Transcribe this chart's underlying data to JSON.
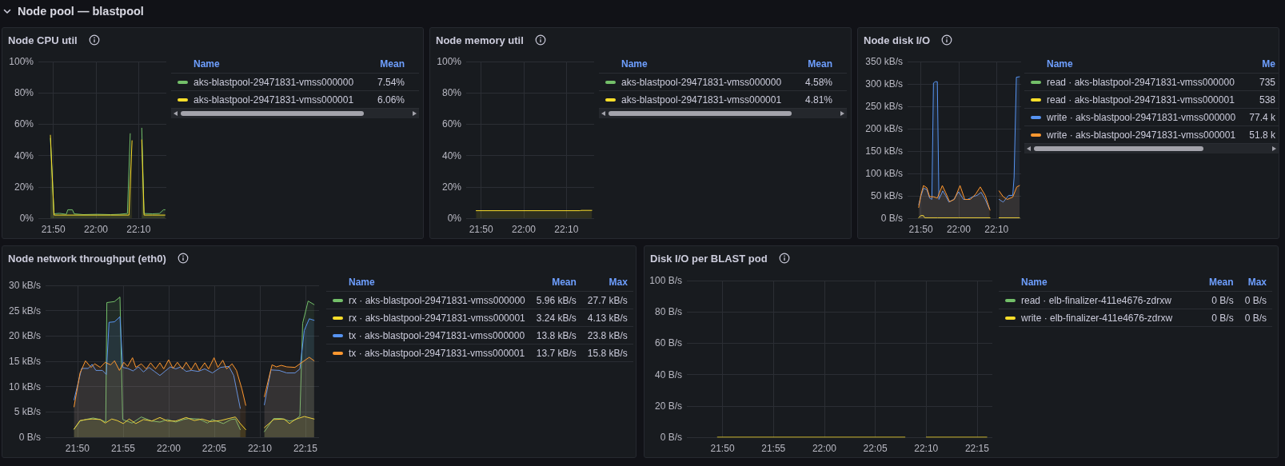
{
  "chart_data": [
    {
      "type": "other",
      "title": "Node pool — blastpool"
    },
    {
      "type": "area",
      "title": "Node CPU util",
      "xlim": [
        21.775,
        22.275
      ],
      "xticks": [
        {
          "value": 21.8333,
          "label": "21:50"
        },
        {
          "value": 22,
          "label": "22:00"
        },
        {
          "value": 22.1667,
          "label": "22:10"
        }
      ],
      "ylim": [
        0,
        100
      ],
      "yticks": [
        {
          "value": 0,
          "label": "0%"
        },
        {
          "value": 20,
          "label": "20%"
        },
        {
          "value": 40,
          "label": "40%"
        },
        {
          "value": 60,
          "label": "60%"
        },
        {
          "value": 80,
          "label": "80%"
        },
        {
          "value": 100,
          "label": "100%"
        }
      ],
      "grid": true,
      "legend": "right",
      "legend_title": "Name",
      "marker": "none",
      "series": [
        {
          "name": "aks-blastpool-29471831-vmss000000",
          "color": "#73bf69",
          "x": [
            21.822,
            21.836,
            21.857,
            21.884,
            21.89,
            21.908,
            21.915,
            21.95,
            22.004,
            22.058,
            22.091,
            22.123,
            22.134,
            22.158,
            22.179,
            22.188,
            22.221,
            22.248,
            22.264,
            22.27
          ],
          "values": [
            51,
            2.8,
            3.1,
            2.5,
            5.4,
            5.4,
            2.8,
            2.3,
            2.5,
            2.3,
            2.5,
            3.0,
            54,
            null,
            57.5,
            3.0,
            2.8,
            3.0,
            5.4,
            5.4
          ]
        },
        {
          "name": "aks-blastpool-29471831-vmss000001",
          "color": "#fade2a",
          "x": [
            21.822,
            21.836,
            21.884,
            21.95,
            22.004,
            22.058,
            22.129,
            22.141,
            22.158,
            22.179,
            22.188,
            22.221,
            22.27
          ],
          "values": [
            53,
            2.0,
            2.0,
            2.0,
            2.0,
            2.0,
            2.0,
            49.5,
            null,
            50,
            2.0,
            2.0,
            2.0
          ]
        }
      ],
      "annotations": [
        "Mean",
        "7.54%",
        "6.06%"
      ]
    },
    {
      "type": "area",
      "title": "Node memory util",
      "xlim": [
        21.775,
        22.275
      ],
      "xticks": [
        {
          "value": 21.8333,
          "label": "21:50"
        },
        {
          "value": 22,
          "label": "22:00"
        },
        {
          "value": 22.1667,
          "label": "22:10"
        }
      ],
      "ylim": [
        0,
        100
      ],
      "yticks": [
        {
          "value": 0,
          "label": "0%"
        },
        {
          "value": 20,
          "label": "20%"
        },
        {
          "value": 40,
          "label": "40%"
        },
        {
          "value": 60,
          "label": "60%"
        },
        {
          "value": 80,
          "label": "80%"
        },
        {
          "value": 100,
          "label": "100%"
        }
      ],
      "grid": true,
      "legend": "right",
      "legend_title": "Name",
      "marker": "none",
      "series": [
        {
          "name": "aks-blastpool-29471831-vmss000000",
          "color": "#73bf69"
        },
        {
          "name": "aks-blastpool-29471831-vmss000001",
          "color": "#fade2a",
          "x": [
            21.814,
            21.9,
            22.0,
            22.1,
            22.22,
            22.225,
            22.266
          ],
          "values": [
            4.8,
            4.8,
            4.8,
            4.8,
            4.8,
            5.0,
            5.0
          ]
        }
      ],
      "annotations": [
        "Mean",
        "4.58%",
        "4.81%"
      ]
    },
    {
      "type": "area",
      "title": "Node disk I/O",
      "xlim": [
        21.775,
        22.275
      ],
      "xticks": [
        {
          "value": 21.8333,
          "label": "21:50"
        },
        {
          "value": 22,
          "label": "22:00"
        },
        {
          "value": 22.1667,
          "label": "22:10"
        }
      ],
      "ylim": [
        0,
        350
      ],
      "yticks": [
        {
          "value": 0,
          "label": "0 B/s"
        },
        {
          "value": 50,
          "label": "50 kB/s"
        },
        {
          "value": 100,
          "label": "100 kB/s"
        },
        {
          "value": 150,
          "label": "150 kB/s"
        },
        {
          "value": 200,
          "label": "200 kB/s"
        },
        {
          "value": 250,
          "label": "250 kB/s"
        },
        {
          "value": 300,
          "label": "300 kB/s"
        },
        {
          "value": 350,
          "label": "350 kB/s"
        }
      ],
      "grid": true,
      "legend": "right",
      "legend_title": "Name",
      "marker": "none",
      "series": [
        {
          "name": "read · aks-blastpool-29471831-vmss000000",
          "color": "#73bf69"
        },
        {
          "name": "read · aks-blastpool-29471831-vmss000001",
          "color": "#fade2a",
          "x": [
            21.824,
            21.833,
            21.845,
            21.85,
            21.87,
            21.906,
            22.0,
            22.138,
            22.16,
            22.178,
            22.268
          ],
          "values": [
            1,
            6,
            6,
            1,
            1,
            1,
            1,
            1,
            null,
            1,
            1
          ]
        },
        {
          "name": "write · aks-blastpool-29471831-vmss000000",
          "color": "#5794f2",
          "x": [
            21.824,
            21.833,
            21.845,
            21.86,
            21.872,
            21.882,
            21.889,
            21.897,
            21.906,
            21.913,
            21.93,
            21.942,
            21.957,
            21.978,
            22.0,
            22.021,
            22.039,
            22.063,
            22.081,
            22.099,
            22.117,
            22.135,
            22.16,
            22.178,
            22.196,
            22.22,
            22.238,
            22.244,
            22.254,
            22.268
          ],
          "values": [
            30,
            48,
            67,
            64,
            45,
            42,
            302,
            305,
            305,
            42,
            61,
            51,
            36,
            42,
            59,
            42,
            42,
            48,
            51,
            58,
            42,
            21,
            null,
            42,
            36,
            51,
            51,
            91,
            315,
            316
          ]
        },
        {
          "name": "write · aks-blastpool-29471831-vmss000001",
          "color": "#ff9830",
          "x": [
            21.824,
            21.833,
            21.845,
            21.86,
            21.872,
            21.888,
            21.906,
            21.928,
            21.942,
            21.96,
            21.981,
            22.006,
            22.027,
            22.051,
            22.075,
            22.095,
            22.117,
            22.138,
            22.16,
            22.178,
            22.196,
            22.214,
            22.238,
            22.256,
            22.268
          ],
          "values": [
            24,
            51,
            73,
            68,
            48,
            48,
            45,
            73,
            58,
            37,
            42,
            73,
            42,
            42,
            54,
            70,
            51,
            18,
            null,
            61,
            48,
            42,
            47,
            70,
            73
          ]
        }
      ],
      "annotations": [
        "Me",
        "735",
        "538",
        "77.4 k",
        "51.8 k"
      ]
    },
    {
      "type": "area",
      "title": "Node network throughput (eth0)",
      "xlim": [
        21.775,
        22.275
      ],
      "xticks": [
        {
          "value": 21.8333,
          "label": "21:50"
        },
        {
          "value": 21.9167,
          "label": "21:55"
        },
        {
          "value": 22,
          "label": "22:00"
        },
        {
          "value": 22.0833,
          "label": "22:05"
        },
        {
          "value": 22.1667,
          "label": "22:10"
        },
        {
          "value": 22.25,
          "label": "22:15"
        }
      ],
      "ylim": [
        0,
        30
      ],
      "yticks": [
        {
          "value": 0,
          "label": "0 B/s"
        },
        {
          "value": 5,
          "label": "5 kB/s"
        },
        {
          "value": 10,
          "label": "10 kB/s"
        },
        {
          "value": 15,
          "label": "15 kB/s"
        },
        {
          "value": 20,
          "label": "20 kB/s"
        },
        {
          "value": 25,
          "label": "25 kB/s"
        },
        {
          "value": 30,
          "label": "30 kB/s"
        }
      ],
      "grid": true,
      "legend": "right",
      "legend_title": "Name",
      "marker": "none",
      "series": [
        {
          "name": "rx · aks-blastpool-29471831-vmss000000",
          "color": "#73bf69",
          "x": [
            21.827,
            21.838,
            21.848,
            21.862,
            21.875,
            21.885,
            21.887,
            21.901,
            21.911,
            21.916,
            21.933,
            21.95,
            21.969,
            21.984,
            21.998,
            22.013,
            22.027,
            22.037,
            22.056,
            22.071,
            22.08,
            22.1,
            22.114,
            22.122,
            22.131,
            22.158,
            22.175,
            22.192,
            22.206,
            22.221,
            22.231,
            22.24,
            22.245,
            22.255,
            22.266
          ],
          "values": [
            1.6,
            3.2,
            3.5,
            3.8,
            3.5,
            3.0,
            26.6,
            26.8,
            27.7,
            3.5,
            2.8,
            4.0,
            3.2,
            3.0,
            3.5,
            3.0,
            3.5,
            3.7,
            3.6,
            2.8,
            3.5,
            2.7,
            3.5,
            3.6,
            1.5,
            null,
            1.1,
            3.7,
            3.7,
            3.2,
            3.4,
            4.2,
            22.5,
            26.9,
            26.2
          ]
        },
        {
          "name": "rx · aks-blastpool-29471831-vmss000001",
          "color": "#fade2a",
          "x": [
            21.827,
            21.838,
            21.85,
            21.86,
            21.875,
            21.884,
            21.896,
            21.906,
            21.917,
            21.928,
            21.94,
            21.954,
            21.969,
            21.984,
            21.998,
            22.013,
            22.032,
            22.047,
            22.061,
            22.076,
            22.095,
            22.11,
            22.122,
            22.131,
            22.141,
            22.158,
            22.175,
            22.192,
            22.211,
            22.221,
            22.231,
            22.248,
            22.266
          ],
          "values": [
            1.6,
            3.3,
            3.5,
            3.6,
            3.5,
            2.8,
            3.6,
            3.3,
            2.7,
            3.6,
            2.7,
            3.5,
            3.2,
            3.9,
            3.2,
            3.2,
            3.9,
            3.3,
            3.6,
            3.1,
            3.3,
            3.7,
            4.0,
            2.7,
            1.5,
            null,
            1.9,
            3.5,
            3.6,
            2.7,
            3.5,
            4.1,
            3.6
          ]
        },
        {
          "name": "tx · aks-blastpool-29471831-vmss000000",
          "color": "#5794f2",
          "x": [
            21.827,
            21.841,
            21.853,
            21.86,
            21.867,
            21.879,
            21.886,
            21.891,
            21.901,
            21.911,
            21.916,
            21.925,
            21.935,
            21.945,
            21.954,
            21.964,
            21.974,
            21.984,
            21.993,
            22.003,
            22.013,
            22.022,
            22.032,
            22.042,
            22.054,
            22.066,
            22.08,
            22.095,
            22.11,
            22.119,
            22.131,
            22.158,
            22.175,
            22.187,
            22.202,
            22.216,
            22.231,
            22.24,
            22.248,
            22.257,
            22.266
          ],
          "values": [
            7.4,
            13.6,
            13.6,
            14.4,
            13.2,
            13.2,
            12.4,
            22.7,
            22.8,
            23.8,
            13.8,
            13.6,
            13.1,
            13.9,
            12.9,
            13.8,
            13.0,
            12.2,
            13.0,
            13.9,
            13.5,
            13.9,
            13.0,
            13.2,
            13.0,
            13.5,
            12.7,
            13.8,
            14.0,
            12.2,
            5.7,
            null,
            6.4,
            13.3,
            13.2,
            12.7,
            12.7,
            13.5,
            21.1,
            23.4,
            23.1
          ]
        },
        {
          "name": "tx · aks-blastpool-29471831-vmss000001",
          "color": "#ff9830",
          "x": [
            21.827,
            21.838,
            21.848,
            21.858,
            21.865,
            21.875,
            21.884,
            21.894,
            21.901,
            21.91,
            21.918,
            21.925,
            21.934,
            21.94,
            21.95,
            21.959,
            21.967,
            21.976,
            21.984,
            21.991,
            22.0,
            22.008,
            22.016,
            22.025,
            22.032,
            22.041,
            22.049,
            22.056,
            22.066,
            22.073,
            22.083,
            22.09,
            22.099,
            22.106,
            22.116,
            22.124,
            22.134,
            22.141,
            22.158,
            22.175,
            22.189,
            22.197,
            22.206,
            22.216,
            22.231,
            22.24,
            22.257,
            22.266
          ],
          "values": [
            6.0,
            12.7,
            15.1,
            13.8,
            14.5,
            13.8,
            14.8,
            14.3,
            15.1,
            13.2,
            14.8,
            14.0,
            15.7,
            13.8,
            14.5,
            13.5,
            14.7,
            13.5,
            14.7,
            13.5,
            15.3,
            13.6,
            14.8,
            13.5,
            14.8,
            13.3,
            14.7,
            13.2,
            14.7,
            13.5,
            15.7,
            13.8,
            15.2,
            13.5,
            14.5,
            13.2,
            9.5,
            6.3,
            null,
            8.0,
            14.3,
            13.9,
            14.2,
            13.9,
            13.8,
            14.5,
            15.8,
            15.1
          ]
        }
      ],
      "annotations": [
        "Mean",
        "5.96 kB/s",
        "3.24 kB/s",
        "13.8 kB/s",
        "13.7 kB/s",
        "Max",
        "27.7 kB/s",
        "4.13 kB/s",
        "23.8 kB/s",
        "15.8 kB/s"
      ]
    },
    {
      "type": "line",
      "title": "Disk I/O per BLAST pod",
      "xlim": [
        21.775,
        22.275
      ],
      "xticks": [
        {
          "value": 21.8333,
          "label": "21:50"
        },
        {
          "value": 21.9167,
          "label": "21:55"
        },
        {
          "value": 22,
          "label": "22:00"
        },
        {
          "value": 22.0833,
          "label": "22:05"
        },
        {
          "value": 22.1667,
          "label": "22:10"
        },
        {
          "value": 22.25,
          "label": "22:15"
        }
      ],
      "ylim": [
        0,
        100
      ],
      "yticks": [
        {
          "value": 0,
          "label": "0 B/s"
        },
        {
          "value": 20,
          "label": "20 B/s"
        },
        {
          "value": 40,
          "label": "40 B/s"
        },
        {
          "value": 60,
          "label": "60 B/s"
        },
        {
          "value": 80,
          "label": "80 B/s"
        },
        {
          "value": 100,
          "label": "100 B/s"
        }
      ],
      "grid": true,
      "legend": "right",
      "legend_title": "Name",
      "marker": "none",
      "series": [
        {
          "name": "read · elb-finalizer-411e4676-zdrxw",
          "color": "#73bf69"
        },
        {
          "name": "write · elb-finalizer-411e4676-zdrxw",
          "color": "#fade2a",
          "x": [
            21.825,
            22.132,
            22.158,
            22.167,
            22.266
          ],
          "values": [
            0,
            0,
            null,
            0,
            0
          ]
        }
      ],
      "annotations": [
        "Mean",
        "0 B/s",
        "0 B/s",
        "Max",
        "0 B/s",
        "0 B/s"
      ]
    }
  ]
}
